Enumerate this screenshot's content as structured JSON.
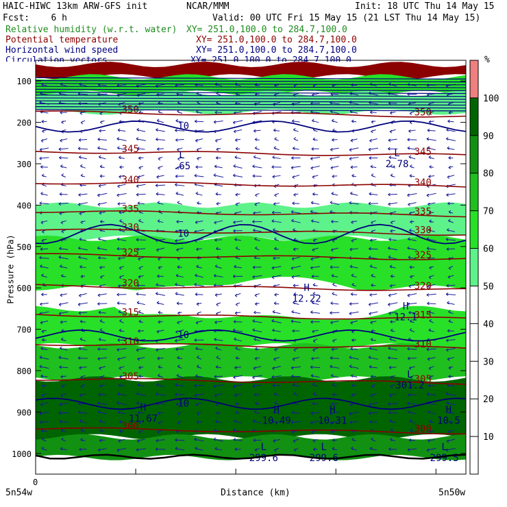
{
  "header": {
    "model": "HAIC-HIWC 13km ARW-GFS init",
    "org": "NCAR/MMM",
    "init": "Init: 18 UTC Thu 14 May 15",
    "fcst": "Fcst:    6 h",
    "valid": "Valid: 00 UTC Fri 15 May 15 (21 LST Thu 14 May 15)",
    "fields": [
      {
        "name": "Relative humidity (w.r.t. water)",
        "xy": "XY= 251.0,100.0 to 284.7,100.0",
        "color": "#1e8b1e"
      },
      {
        "name": "Potential temperature",
        "xy": "XY= 251.0,100.0 to 284.7,100.0",
        "color": "#8b0000"
      },
      {
        "name": "Horizontal wind speed",
        "xy": "XY= 251.0,100.0 to 284.7,100.0",
        "color": "#000080"
      },
      {
        "name": "Circulation vectors",
        "xy": "XY= 251.0,100.0 to 284.7,100.0",
        "color": "#000080"
      }
    ]
  },
  "axes": {
    "ylabel": "Pressure (hPa)",
    "xlabel": "Distance (km)",
    "x_left": "5n54w",
    "x_right": "5n50w",
    "x_zero": "0",
    "yticks": [
      "100",
      "200",
      "300",
      "400",
      "500",
      "600",
      "700",
      "800",
      "900",
      "1000"
    ]
  },
  "colorbar": {
    "unit": "%",
    "ticks": [
      "10",
      "20",
      "30",
      "40",
      "50",
      "60",
      "70",
      "80",
      "90",
      "100"
    ],
    "colors": [
      "#ffffff",
      "#ffffff",
      "#ffffff",
      "#ffffff",
      "#ffffff",
      "#5ef28a",
      "#28e028",
      "#1fbf1f",
      "#129012",
      "#006400",
      "#f08080"
    ]
  },
  "chart_data": {
    "type": "heatmap",
    "description_fields": [
      "relative_humidity",
      "potential_temperature",
      "wind_speed"
    ],
    "ylim": [
      1050,
      50
    ],
    "rh_layers": [
      {
        "p_top": 60,
        "p_bot": 90,
        "rh": 100
      },
      {
        "p_top": 90,
        "p_bot": 130,
        "rh": 60
      },
      {
        "p_top": 130,
        "p_bot": 175,
        "rh": 50
      },
      {
        "p_top": 400,
        "p_bot": 480,
        "rh": 55
      },
      {
        "p_top": 480,
        "p_bot": 600,
        "rh": 60
      },
      {
        "p_top": 650,
        "p_bot": 740,
        "rh": 65
      },
      {
        "p_top": 740,
        "p_bot": 820,
        "rh": 75
      },
      {
        "p_top": 820,
        "p_bot": 960,
        "rh": 90
      },
      {
        "p_top": 960,
        "p_bot": 1010,
        "rh": 80
      }
    ],
    "theta_contours": [
      {
        "value": 345,
        "label": "345",
        "p": 275
      },
      {
        "value": 340,
        "label": "340",
        "p": 350
      },
      {
        "value": 335,
        "label": "335",
        "p": 420
      },
      {
        "value": 330,
        "label": "330",
        "p": 465
      },
      {
        "value": 325,
        "label": "325",
        "p": 525
      },
      {
        "value": 320,
        "label": "320",
        "p": 600
      },
      {
        "value": 315,
        "label": "315",
        "p": 670
      },
      {
        "value": 310,
        "label": "310",
        "p": 740
      },
      {
        "value": 305,
        "label": "305",
        "p": 825
      },
      {
        "value": 300,
        "label": "300",
        "p": 945
      },
      {
        "value": 350,
        "label": "350",
        "p": 180
      }
    ],
    "wind_contours": [
      {
        "value": 10,
        "label": "10",
        "p": 210
      },
      {
        "value": 10,
        "label": "10",
        "p": 470
      },
      {
        "value": 10,
        "label": "10",
        "p": 715
      },
      {
        "value": 10,
        "label": "10",
        "p": 880
      }
    ],
    "extrema": [
      {
        "kind": "L",
        "value": ".65",
        "x": 0.34,
        "p": 300
      },
      {
        "kind": "L",
        "value": "2.78",
        "x": 0.84,
        "p": 295
      },
      {
        "kind": "H",
        "value": "12.22",
        "x": 0.63,
        "p": 620
      },
      {
        "kind": "H",
        "value": "12.1",
        "x": 0.86,
        "p": 665
      },
      {
        "kind": "H",
        "value": "11.67",
        "x": 0.25,
        "p": 910
      },
      {
        "kind": "H",
        "value": "10.49",
        "x": 0.56,
        "p": 915
      },
      {
        "kind": "H",
        "value": "10.31",
        "x": 0.69,
        "p": 915
      },
      {
        "kind": "H",
        "value": "10.5",
        "x": 0.96,
        "p": 915
      },
      {
        "kind": "L",
        "value": "301.2",
        "x": 0.87,
        "p": 830
      },
      {
        "kind": "L",
        "value": "299.6",
        "x": 0.53,
        "p": 1005
      },
      {
        "kind": "L",
        "value": "299.6",
        "x": 0.67,
        "p": 1005
      },
      {
        "kind": "L",
        "value": "299.5",
        "x": 0.95,
        "p": 1005
      }
    ]
  }
}
